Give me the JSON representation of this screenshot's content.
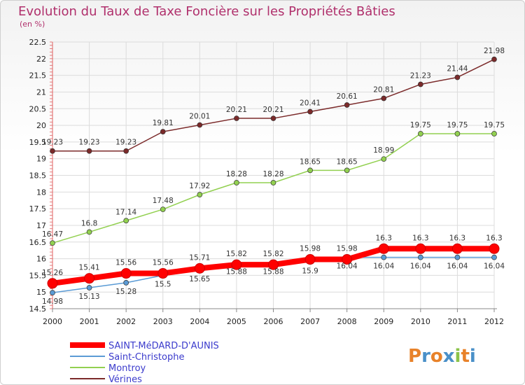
{
  "title": "Evolution du Taux de Taxe Foncière sur les Propriétés Bâties",
  "subtitle": "(en %)",
  "brand": {
    "letters": [
      "P",
      "r",
      "o",
      "x",
      "i",
      "t",
      "i"
    ],
    "colors": [
      "#e8822a",
      "#4a90c8",
      "#e8822a",
      "#4a90c8",
      "#8bc34a",
      "#e8822a",
      "#4a90c8"
    ]
  },
  "chart_data": {
    "type": "line",
    "x": [
      "2000",
      "2001",
      "2002",
      "2003",
      "2004",
      "2005",
      "2006",
      "2007",
      "2008",
      "2009",
      "2010",
      "2011",
      "2012"
    ],
    "ylim": [
      14.5,
      22.5
    ],
    "yticks": [
      "14.5",
      "15",
      "15.5",
      "16",
      "16.5",
      "17",
      "17.5",
      "18",
      "18.5",
      "19",
      "19.5",
      "20",
      "20.5",
      "21",
      "21.5",
      "22",
      "22.5"
    ],
    "legend_placement": "bottom-left",
    "series": [
      {
        "name": "SAINT-MéDARD-D'AUNIS",
        "color": "#ff0000",
        "width": "thick",
        "values": [
          15.26,
          15.41,
          15.56,
          15.56,
          15.71,
          15.82,
          15.82,
          15.98,
          15.98,
          16.3,
          16.3,
          16.3,
          16.3
        ],
        "labels": [
          "15.26",
          "15.41",
          "15.56",
          "15.56",
          "15.71",
          "15.82",
          "15.82",
          "15.98",
          "15.98",
          "16.3",
          "16.3",
          "16.3",
          "16.3"
        ]
      },
      {
        "name": "Saint-Christophe",
        "color": "#5b9bd5",
        "width": "thin",
        "values": [
          14.98,
          15.13,
          15.28,
          15.5,
          15.65,
          15.88,
          15.88,
          15.9,
          16.04,
          16.04,
          16.04,
          16.04,
          16.04
        ],
        "labels": [
          "14.98",
          "15.13",
          "15.28",
          "15.5",
          "15.65",
          "15.88",
          "15.88",
          "15.9",
          "16.04",
          "16.04",
          "16.04",
          "16.04",
          "16.04"
        ]
      },
      {
        "name": "Montroy",
        "color": "#92d050",
        "width": "thin",
        "values": [
          16.47,
          16.8,
          17.14,
          17.48,
          17.92,
          18.28,
          18.28,
          18.65,
          18.65,
          18.99,
          19.75,
          19.75,
          19.75
        ],
        "labels": [
          "16.47",
          "16.8",
          "17.14",
          "17.48",
          "17.92",
          "18.28",
          "18.28",
          "18.65",
          "18.65",
          "18.99",
          "19.75",
          "19.75",
          "19.75"
        ]
      },
      {
        "name": "Vérines",
        "color": "#7b2a2a",
        "width": "thin",
        "values": [
          19.23,
          19.23,
          19.23,
          19.81,
          20.01,
          20.21,
          20.21,
          20.41,
          20.61,
          20.81,
          21.23,
          21.44,
          21.98
        ],
        "labels": [
          "19.23",
          "19.23",
          "19.23",
          "19.81",
          "20.01",
          "20.21",
          "20.21",
          "20.41",
          "20.61",
          "20.81",
          "21.23",
          "21.44",
          "21.98"
        ]
      }
    ]
  }
}
